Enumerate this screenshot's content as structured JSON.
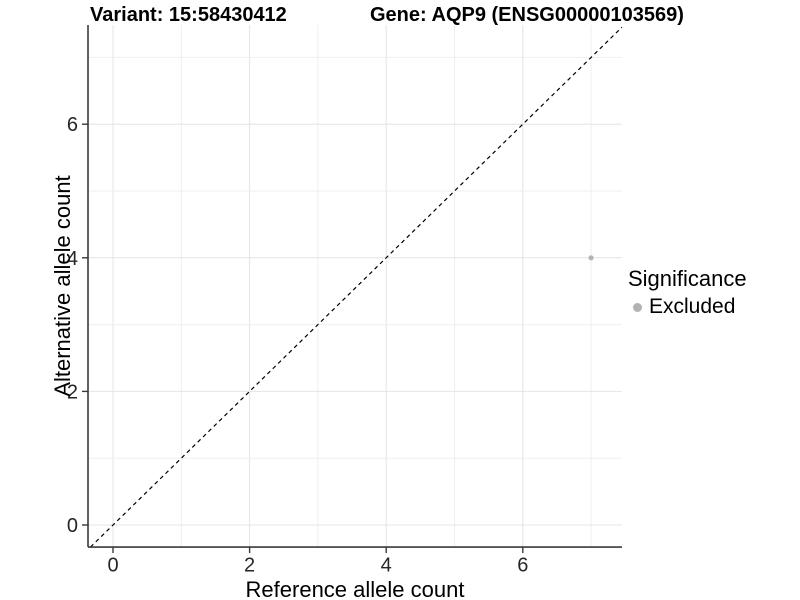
{
  "header": {
    "variant_title": "Variant: 15:58430412",
    "gene_title": "Gene: AQP9 (ENSG00000103569)"
  },
  "axes": {
    "x_label": "Reference allele count",
    "y_label": "Alternative allele count"
  },
  "legend": {
    "title": "Significance",
    "items": [
      {
        "label": "Excluded",
        "color": "#b3b3b3"
      }
    ]
  },
  "colors": {
    "background": "#ffffff",
    "grid_major": "#e4e4e4",
    "grid_minor": "#efefef",
    "axis_line": "#3a3a3a",
    "tick_text": "#262626",
    "point": "#b3b3b3",
    "identity_line": "#000000"
  },
  "chart_data": {
    "type": "scatter",
    "title": "Variant: 15:58430412   Gene: AQP9 (ENSG00000103569)",
    "xlabel": "Reference allele count",
    "ylabel": "Alternative allele count",
    "xlim": [
      -0.366,
      7.452
    ],
    "ylim": [
      -0.33,
      7.485
    ],
    "x_ticks": [
      0,
      2,
      4,
      6
    ],
    "y_ticks": [
      0,
      2,
      4,
      6
    ],
    "grid": "on",
    "grid_interval": 1,
    "legend_position": "right",
    "series": [
      {
        "name": "Excluded",
        "color": "#b3b3b3",
        "points": [
          [
            7,
            4
          ]
        ]
      }
    ],
    "reference_line": {
      "kind": "identity",
      "slope": 1,
      "intercept": 0,
      "style": "dashed",
      "color": "#000000"
    }
  }
}
